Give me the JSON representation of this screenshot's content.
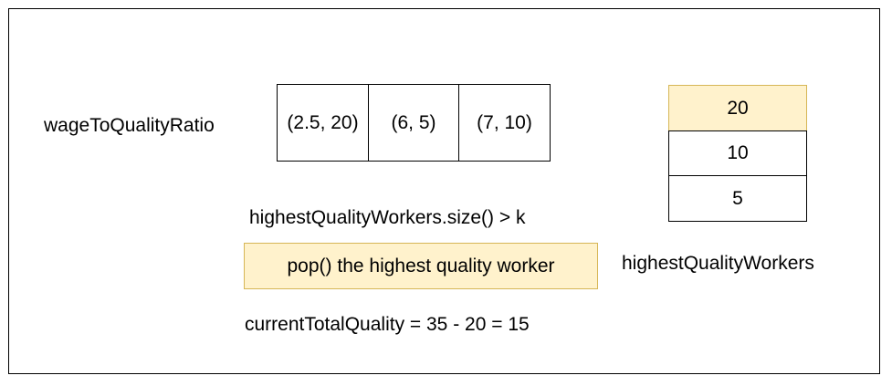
{
  "ratio_label": "wageToQualityRatio",
  "ratio_cells": [
    "(2.5, 20)",
    "(6, 5)",
    "(7, 10)"
  ],
  "condition_text": "highestQualityWorkers.size() > k",
  "action_text": "pop() the highest quality worker",
  "total_text": "currentTotalQuality = 35 - 20 = 15",
  "heap": {
    "label": "highestQualityWorkers",
    "items": [
      "20",
      "10",
      "5"
    ]
  },
  "colors": {
    "highlight_fill": "#fff2cc",
    "highlight_stroke": "#d6b656",
    "stroke": "#000000"
  }
}
